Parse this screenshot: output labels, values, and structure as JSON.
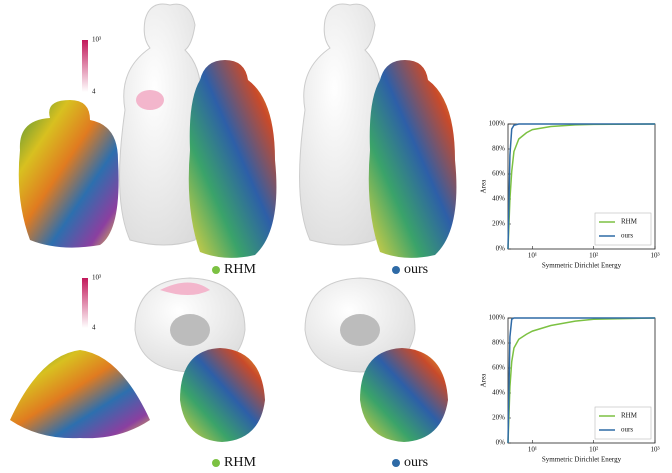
{
  "figure": {
    "top": {
      "colorbar": {
        "max_label": "10³",
        "min_label": "4"
      },
      "captions": [
        "RHM",
        "ours"
      ]
    },
    "bottom": {
      "colorbar": {
        "max_label": "10³",
        "min_label": "4"
      },
      "captions": [
        "RHM",
        "ours"
      ]
    }
  },
  "chart_data": [
    {
      "type": "line",
      "xlabel": "Symmetric Dirichlet Energy",
      "ylabel": "Area",
      "log_x": true,
      "legend": "lower right",
      "x": [
        4,
        4.3,
        4.6,
        5,
        6,
        8,
        10,
        20,
        50,
        100,
        1000
      ],
      "series": [
        {
          "name": "RHM",
          "color": "#7cc142",
          "values": [
            0,
            40,
            62,
            78,
            88,
            93,
            95.5,
            98,
            99.3,
            99.7,
            100
          ]
        },
        {
          "name": "ours",
          "color": "#2e6aa6",
          "values": [
            0,
            75,
            96,
            99,
            100,
            100,
            100,
            100,
            100,
            100,
            100
          ]
        }
      ],
      "xlim": [
        4,
        1000
      ],
      "xticks": [
        {
          "value": 10,
          "label": "10¹"
        },
        {
          "value": 100,
          "label": "10²"
        },
        {
          "value": 1000,
          "label": "10³"
        }
      ],
      "ylim": [
        0,
        100
      ],
      "yticks": [
        {
          "value": 0,
          "label": "0%"
        },
        {
          "value": 20,
          "label": "20%"
        },
        {
          "value": 40,
          "label": "40%"
        },
        {
          "value": 60,
          "label": "60%"
        },
        {
          "value": 80,
          "label": "80%"
        },
        {
          "value": 100,
          "label": "100%"
        }
      ]
    },
    {
      "type": "line",
      "xlabel": "Symmetric Dirichlet Energy",
      "ylabel": "Area",
      "log_x": true,
      "legend": "lower right",
      "x": [
        4,
        4.3,
        4.6,
        5,
        6,
        8,
        10,
        20,
        50,
        100,
        1000
      ],
      "series": [
        {
          "name": "RHM",
          "color": "#7cc142",
          "values": [
            0,
            45,
            65,
            76,
            83,
            87,
            89.5,
            94,
            97.5,
            99,
            100
          ]
        },
        {
          "name": "ours",
          "color": "#2e6aa6",
          "values": [
            0,
            85,
            99,
            100,
            100,
            100,
            100,
            100,
            100,
            100,
            100
          ]
        }
      ],
      "xlim": [
        4,
        1000
      ],
      "xticks": [
        {
          "value": 10,
          "label": "10¹"
        },
        {
          "value": 100,
          "label": "10²"
        },
        {
          "value": 1000,
          "label": "10³"
        }
      ],
      "ylim": [
        0,
        100
      ],
      "yticks": [
        {
          "value": 0,
          "label": "0%"
        },
        {
          "value": 20,
          "label": "20%"
        },
        {
          "value": 40,
          "label": "40%"
        },
        {
          "value": 60,
          "label": "60%"
        },
        {
          "value": 80,
          "label": "80%"
        },
        {
          "value": 100,
          "label": "100%"
        }
      ]
    }
  ]
}
